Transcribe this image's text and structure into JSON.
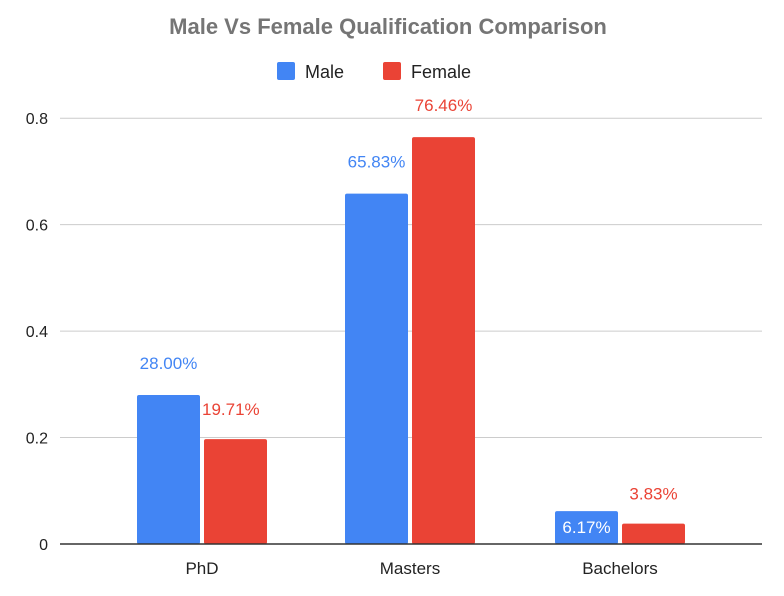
{
  "colors": {
    "male": "#4285F4",
    "female": "#EA4335",
    "title": "#757575",
    "axis_text": "#222222",
    "grid": "#cccccc",
    "baseline": "#333333"
  },
  "chart_data": {
    "type": "bar",
    "title": "Male Vs Female Qualification Comparison",
    "xlabel": "",
    "ylabel": "",
    "categories": [
      "PhD",
      "Masters",
      "Bachelors"
    ],
    "series": [
      {
        "name": "Male",
        "color": "#4285F4",
        "values": [
          0.28,
          0.6583,
          0.0617
        ],
        "labels": [
          "28.00%",
          "65.83%",
          "6.17%"
        ]
      },
      {
        "name": "Female",
        "color": "#EA4335",
        "values": [
          0.1971,
          0.7646,
          0.0383
        ],
        "labels": [
          "19.71%",
          "76.46%",
          "3.83%"
        ]
      }
    ],
    "ylim": [
      0,
      0.9
    ],
    "yticks": [
      0,
      0.2,
      0.4,
      0.6,
      0.8
    ],
    "ytick_labels": [
      "0",
      "0.2",
      "0.4",
      "0.6",
      "0.8"
    ],
    "grid": true,
    "legend_position": "top"
  }
}
